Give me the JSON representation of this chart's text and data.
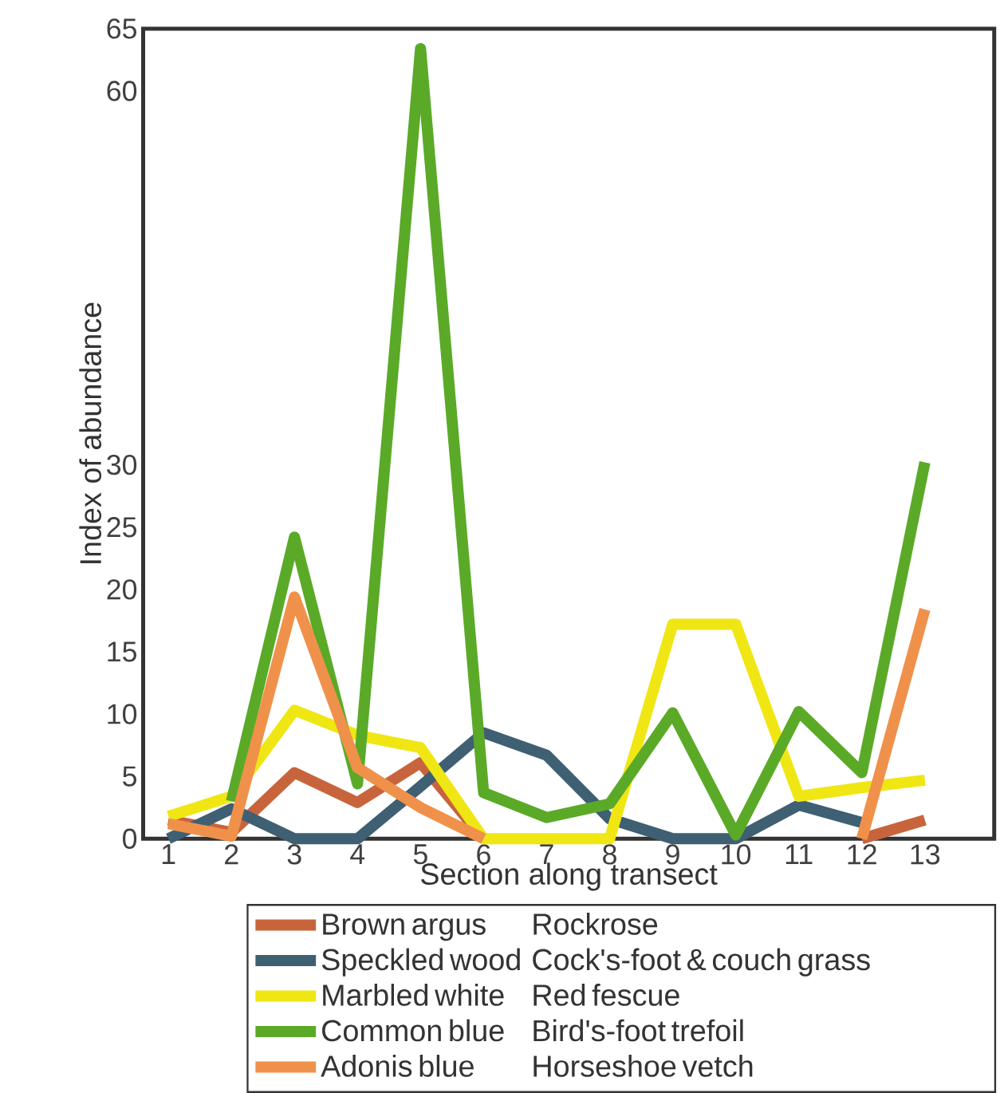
{
  "chart_data": {
    "type": "line",
    "xlabel": "Section along transect",
    "ylabel": "Index of abundance",
    "x": [
      1,
      2,
      3,
      4,
      5,
      6,
      7,
      8,
      9,
      10,
      11,
      12,
      13
    ],
    "xlim": [
      0.6,
      14.1
    ],
    "xticks": [
      1,
      2,
      3,
      4,
      5,
      6,
      7,
      8,
      9,
      10,
      11,
      12,
      13
    ],
    "ylim": [
      0,
      65
    ],
    "yticks": [
      0,
      5,
      10,
      15,
      20,
      25,
      30,
      60,
      65
    ],
    "line_style": "solid",
    "legend": "bottom",
    "series": [
      {
        "name": "Brown argus",
        "color": "#c8643c",
        "values": [
          1.5,
          0.5,
          5.3,
          2.9,
          6.1,
          0,
          null,
          null,
          null,
          null,
          null,
          0,
          1.5
        ]
      },
      {
        "name": "Speckled wood",
        "color": "#3f5f73",
        "values": [
          0,
          2.4,
          0,
          0,
          4.2,
          8.5,
          6.7,
          1.6,
          0,
          0,
          2.7,
          1.3,
          null
        ]
      },
      {
        "name": "Marbled white",
        "color": "#f0e614",
        "values": [
          1.8,
          3.4,
          10.3,
          8.3,
          7.3,
          0,
          0,
          0,
          17.2,
          17.2,
          3.4,
          4.1,
          4.7
        ]
      },
      {
        "name": "Common blue",
        "color": "#5aaa28",
        "values": [
          null,
          3,
          24.2,
          4.4,
          63.4,
          3.7,
          1.7,
          2.8,
          10.1,
          0.3,
          10.2,
          5.3,
          30.2
        ]
      },
      {
        "name": "Adonis blue",
        "color": "#f0914b",
        "values": [
          1.2,
          0.2,
          19.4,
          5.7,
          2.5,
          0,
          null,
          null,
          null,
          null,
          null,
          0,
          18.4
        ]
      }
    ],
    "annotations": [
      "Rockrose",
      "Cock's-foot & couch grass",
      "Red fescue",
      "Bird's-foot trefoil",
      "Horseshoe vetch"
    ]
  }
}
